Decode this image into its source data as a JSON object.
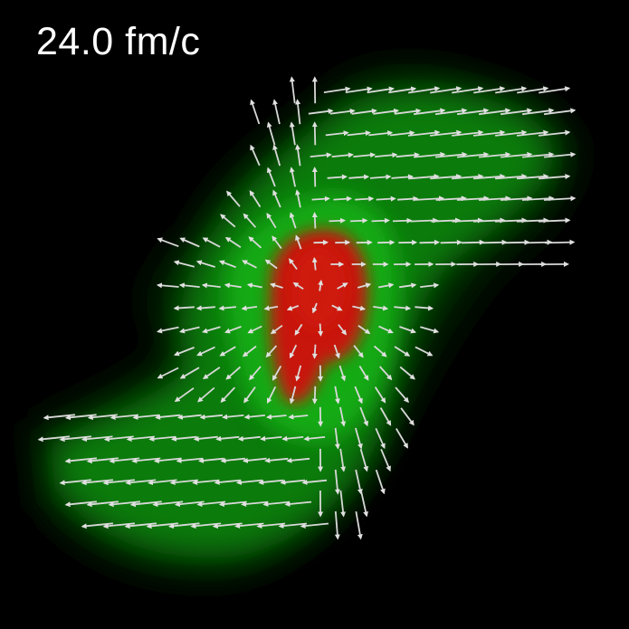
{
  "time_label": "24.0 fm/c",
  "colors": {
    "background": "#000000",
    "outer_field": "#0a9a0a",
    "core_field": "#c41208",
    "arrows": "#d8d8d8",
    "label": "#ffffff"
  }
}
